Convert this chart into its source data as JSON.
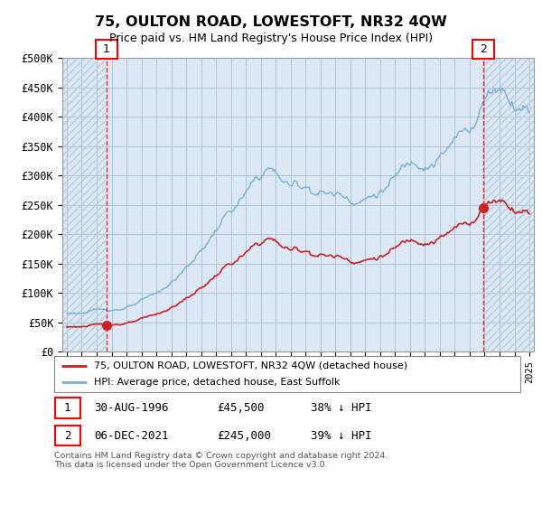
{
  "title": "75, OULTON ROAD, LOWESTOFT, NR32 4QW",
  "subtitle": "Price paid vs. HM Land Registry's House Price Index (HPI)",
  "ylim": [
    0,
    500000
  ],
  "yticks": [
    0,
    50000,
    100000,
    150000,
    200000,
    250000,
    300000,
    350000,
    400000,
    450000,
    500000
  ],
  "ytick_labels": [
    "£0",
    "£50K",
    "£100K",
    "£150K",
    "£200K",
    "£250K",
    "£300K",
    "£350K",
    "£400K",
    "£450K",
    "£500K"
  ],
  "xlim_start": 1993.7,
  "xlim_end": 2025.3,
  "hpi_color": "#7ab0d4",
  "price_color": "#cc2222",
  "sale1_year": 1996.664,
  "sale1_price": 45500,
  "sale2_year": 2021.922,
  "sale2_price": 245000,
  "legend_label1": "75, OULTON ROAD, LOWESTOFT, NR32 4QW (detached house)",
  "legend_label2": "HPI: Average price, detached house, East Suffolk",
  "table_row1": [
    "1",
    "30-AUG-1996",
    "£45,500",
    "38% ↓ HPI"
  ],
  "table_row2": [
    "2",
    "06-DEC-2021",
    "£245,000",
    "39% ↓ HPI"
  ],
  "footnote": "Contains HM Land Registry data © Crown copyright and database right 2024.\nThis data is licensed under the Open Government Licence v3.0.",
  "bg_color": "#dce8f5",
  "hatch_color": "#b8cfe0",
  "grid_color": "#b0c4d8"
}
